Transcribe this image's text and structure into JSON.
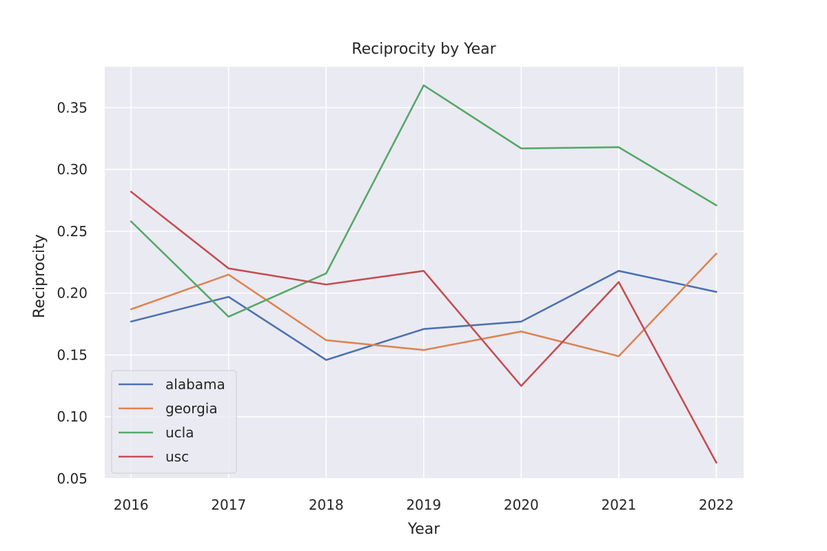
{
  "chart_data": {
    "type": "line",
    "title": "Reciprocity by Year",
    "xlabel": "Year",
    "ylabel": "Reciprocity",
    "x": [
      2016,
      2017,
      2018,
      2019,
      2020,
      2021,
      2022
    ],
    "x_tick_labels": [
      "2016",
      "2017",
      "2018",
      "2019",
      "2020",
      "2021",
      "2022"
    ],
    "y_ticks": [
      0.05,
      0.1,
      0.15,
      0.2,
      0.25,
      0.3,
      0.35
    ],
    "y_tick_labels": [
      "0.05",
      "0.10",
      "0.15",
      "0.20",
      "0.25",
      "0.30",
      "0.35"
    ],
    "xlim": [
      2015.73,
      2022.28
    ],
    "ylim": [
      0.05,
      0.383
    ],
    "grid": true,
    "legend_position": "lower-left",
    "series": [
      {
        "name": "alabama",
        "color": "#4c72b0",
        "values": [
          0.177,
          0.197,
          0.146,
          0.171,
          0.177,
          0.218,
          0.201
        ]
      },
      {
        "name": "georgia",
        "color": "#dd8452",
        "values": [
          0.187,
          0.215,
          0.162,
          0.154,
          0.169,
          0.149,
          0.232
        ]
      },
      {
        "name": "ucla",
        "color": "#55a868",
        "values": [
          0.258,
          0.181,
          0.216,
          0.368,
          0.317,
          0.318,
          0.271
        ]
      },
      {
        "name": "usc",
        "color": "#c44e52",
        "values": [
          0.282,
          0.22,
          0.207,
          0.218,
          0.125,
          0.209,
          0.063
        ]
      }
    ]
  }
}
